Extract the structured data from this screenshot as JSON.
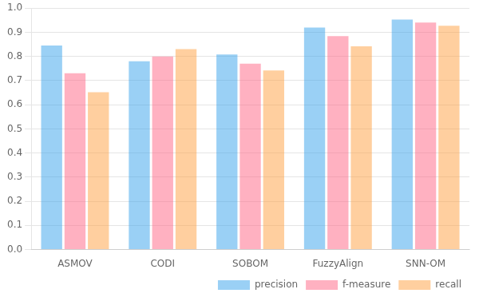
{
  "chart_data": {
    "type": "bar",
    "categories": [
      "ASMOV",
      "CODI",
      "SOBOM",
      "FuzzyAlign",
      "SNN-OM"
    ],
    "series": [
      {
        "name": "precision",
        "values": [
          0.845,
          0.78,
          0.808,
          0.92,
          0.953
        ]
      },
      {
        "name": "f-measure",
        "values": [
          0.73,
          0.8,
          0.77,
          0.884,
          0.94
        ]
      },
      {
        "name": "recall",
        "values": [
          0.652,
          0.83,
          0.742,
          0.842,
          0.927
        ]
      }
    ],
    "ylim": [
      0.0,
      1.0
    ],
    "yticks": [
      {
        "value": 0,
        "label": "0.0"
      },
      0.1,
      0.2,
      0.3,
      0.4,
      0.5,
      0.6,
      0.7,
      0.8,
      0.9,
      {
        "value": 1,
        "label": "1.0"
      }
    ],
    "grid": true,
    "legend": "lower right"
  }
}
